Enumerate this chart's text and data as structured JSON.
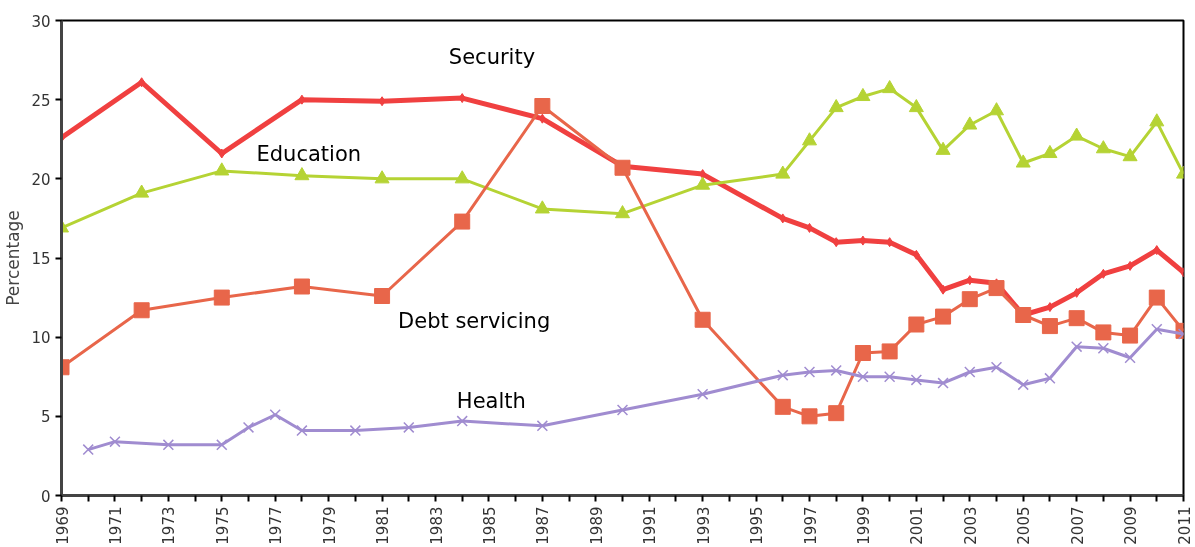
{
  "chart_data": {
    "type": "line",
    "ylabel": "Percentage",
    "xlim": [
      1969,
      2011
    ],
    "ylim": [
      0,
      30
    ],
    "yticks": [
      0,
      5,
      10,
      15,
      20,
      25,
      30
    ],
    "xticks": [
      1969,
      {
        "value": 1970,
        "label": null
      },
      1971,
      {
        "value": 1972,
        "label": null
      },
      1973,
      {
        "value": 1974,
        "label": null
      },
      1975,
      {
        "value": 1976,
        "label": null
      },
      1977,
      {
        "value": 1978,
        "label": null
      },
      1979,
      {
        "value": 1980,
        "label": null
      },
      1981,
      {
        "value": 1982,
        "label": null
      },
      1983,
      {
        "value": 1984,
        "label": null
      },
      1985,
      {
        "value": 1986,
        "label": null
      },
      1987,
      {
        "value": 1988,
        "label": null
      },
      1989,
      {
        "value": 1990,
        "label": null
      },
      1991,
      {
        "value": 1992,
        "label": null
      },
      1993,
      {
        "value": 1994,
        "label": null
      },
      1995,
      {
        "value": 1996,
        "label": null
      },
      1997,
      {
        "value": 1998,
        "label": null
      },
      1999,
      {
        "value": 2000,
        "label": null
      },
      2001,
      {
        "value": 2002,
        "label": null
      },
      2003,
      {
        "value": 2004,
        "label": null
      },
      2005,
      {
        "value": 2006,
        "label": null
      },
      2007,
      {
        "value": 2008,
        "label": null
      },
      2009,
      {
        "value": 2010,
        "label": null
      },
      2011
    ],
    "grid": false,
    "legend": false,
    "line_style": "solid",
    "series": [
      {
        "name": "Security",
        "color": "#f04040",
        "marker": "diamond",
        "x": [
          1969,
          1972,
          1975,
          1978,
          1981,
          1984,
          1987,
          1990,
          1993,
          1996,
          1997,
          1998,
          1999,
          2000,
          2001,
          2002,
          2003,
          2004,
          2005,
          2006,
          2007,
          2008,
          2009,
          2010,
          2011
        ],
        "values": [
          22.6,
          26.1,
          21.6,
          25.0,
          24.9,
          25.1,
          23.8,
          20.8,
          20.3,
          17.5,
          16.9,
          16.0,
          16.1,
          16.0,
          15.2,
          13.0,
          13.6,
          13.4,
          11.4,
          11.9,
          12.8,
          14.0,
          14.5,
          15.5,
          14.1
        ]
      },
      {
        "name": "Education",
        "color": "#b5d334",
        "marker": "triangle",
        "x": [
          1969,
          1972,
          1975,
          1978,
          1981,
          1984,
          1987,
          1990,
          1993,
          1996,
          1997,
          1998,
          1999,
          2000,
          2001,
          2002,
          2003,
          2004,
          2005,
          2006,
          2007,
          2008,
          2009,
          2010,
          2011
        ],
        "values": [
          16.9,
          19.1,
          20.5,
          20.2,
          20.0,
          20.0,
          18.1,
          17.8,
          19.6,
          20.3,
          22.4,
          24.5,
          25.2,
          25.7,
          24.5,
          21.8,
          23.4,
          24.3,
          21.0,
          21.6,
          22.7,
          21.9,
          21.4,
          23.6,
          20.3
        ]
      },
      {
        "name": "Debt servicing",
        "color": "#e8664a",
        "marker": "square",
        "x": [
          1969,
          1972,
          1975,
          1978,
          1981,
          1984,
          1987,
          1990,
          1993,
          1996,
          1997,
          1998,
          1999,
          2000,
          2001,
          2002,
          2003,
          2004,
          2005,
          2006,
          2007,
          2008,
          2009,
          2010,
          2011
        ],
        "values": [
          8.1,
          11.7,
          12.5,
          13.2,
          12.6,
          17.3,
          24.6,
          20.7,
          11.1,
          5.6,
          5.0,
          5.2,
          9.0,
          9.1,
          10.8,
          11.3,
          12.4,
          13.1,
          11.4,
          10.7,
          11.2,
          10.3,
          10.1,
          12.5,
          10.4
        ]
      },
      {
        "name": "Health",
        "color": "#a08cd0",
        "marker": "cross",
        "x": [
          1970,
          1971,
          1973,
          1975,
          1976,
          1977,
          1978,
          1980,
          1982,
          1984,
          1987,
          1990,
          1993,
          1996,
          1997,
          1998,
          1999,
          2000,
          2001,
          2002,
          2003,
          2004,
          2005,
          2006,
          2007,
          2008,
          2009,
          2010,
          2011
        ],
        "values": [
          2.9,
          3.4,
          3.2,
          3.2,
          4.3,
          5.1,
          4.1,
          4.1,
          4.3,
          4.7,
          4.4,
          5.4,
          6.4,
          7.6,
          7.8,
          7.9,
          7.5,
          7.5,
          7.3,
          7.1,
          7.8,
          8.1,
          7.0,
          7.4,
          9.4,
          9.3,
          8.7,
          10.5,
          10.2
        ]
      }
    ]
  }
}
